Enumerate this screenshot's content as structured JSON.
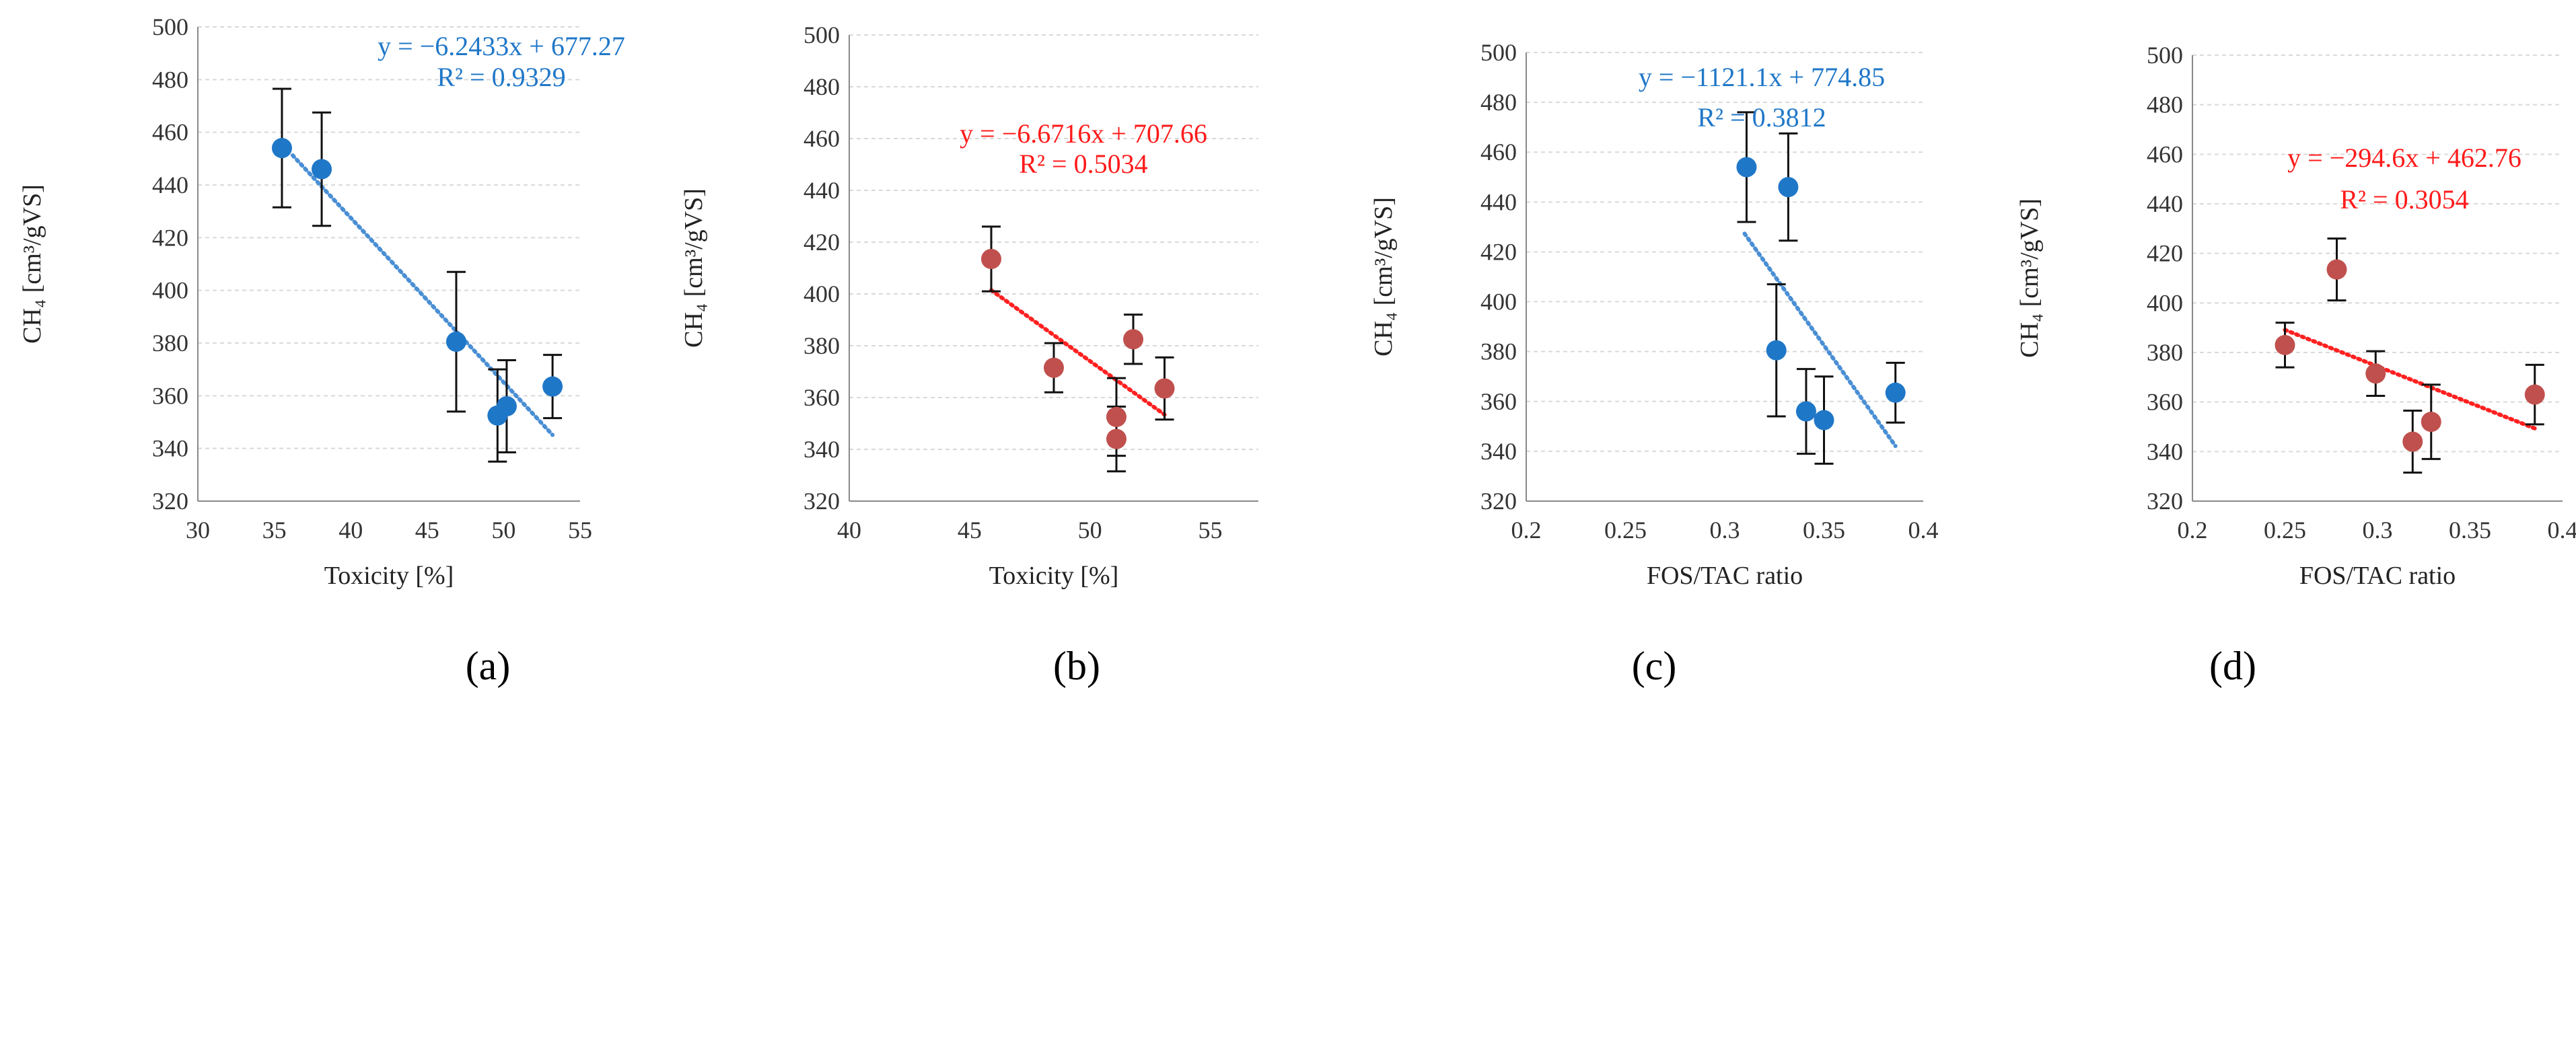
{
  "figure": {
    "panels": [
      "(a)",
      "(b)",
      "(c)",
      "(d)"
    ]
  },
  "chart_data": [
    {
      "type": "scatter",
      "panel_label": "(a)",
      "xlabel": "Toxicity [%]",
      "ylabel": "CH₄ [cm³/gVS]",
      "xlim": [
        30,
        55
      ],
      "ylim": [
        320,
        500
      ],
      "xticks": [
        "30",
        "35",
        "40",
        "45",
        "50",
        "55"
      ],
      "yticks": [
        "320",
        "340",
        "360",
        "380",
        "400",
        "420",
        "440",
        "460",
        "480",
        "500"
      ],
      "marker_color": "#1f77c8",
      "trendline_color": "#4a8fd4",
      "points": [
        {
          "x": 35.5,
          "y": 454,
          "err": 22.5
        },
        {
          "x": 38.1,
          "y": 446,
          "err": 21.5
        },
        {
          "x": 46.9,
          "y": 380.5,
          "err": 26.5
        },
        {
          "x": 49.6,
          "y": 352.5,
          "err": 17.5
        },
        {
          "x": 50.2,
          "y": 356,
          "err": 17.5
        },
        {
          "x": 53.2,
          "y": 363.5,
          "err": 12
        }
      ],
      "trendline": {
        "slope": -6.2433,
        "intercept": 677.27,
        "x_from": 36.2,
        "x_to": 53.2
      },
      "equation_text": "y = −6.2433x + 677.27",
      "r2_text": "R² = 0.9329"
    },
    {
      "type": "scatter",
      "panel_label": "(b)",
      "xlabel": "Toxicity [%]",
      "ylabel": "CH₄ [cm³/gVS]",
      "xlim": [
        40,
        57
      ],
      "ylim": [
        320,
        500
      ],
      "xticks": [
        "40",
        "45",
        "50",
        "55"
      ],
      "yticks": [
        "320",
        "340",
        "360",
        "380",
        "400",
        "420",
        "440",
        "460",
        "480",
        "500"
      ],
      "marker_color": "#c0504d",
      "trendline_color": "#ff2020",
      "points": [
        {
          "x": 45.9,
          "y": 413.5,
          "err": 12.5
        },
        {
          "x": 48.5,
          "y": 371.5,
          "err": 9.5
        },
        {
          "x": 51.1,
          "y": 352.5,
          "err": 15
        },
        {
          "x": 51.1,
          "y": 344,
          "err": 12.5
        },
        {
          "x": 51.8,
          "y": 382.5,
          "err": 9.5
        },
        {
          "x": 53.1,
          "y": 363.5,
          "err": 12
        }
      ],
      "trendline": {
        "slope": -6.6716,
        "intercept": 707.66,
        "x_from": 45.9,
        "x_to": 53.1
      },
      "equation_text": "y = −6.6716x + 707.66",
      "r2_text": "R² = 0.5034"
    },
    {
      "type": "scatter",
      "panel_label": "(c)",
      "xlabel": "FOS/TAC ratio",
      "ylabel": "CH₄ [cm³/gVS]",
      "xlim": [
        0.2,
        0.4
      ],
      "ylim": [
        320,
        500
      ],
      "xticks": [
        "0.2",
        "0.25",
        "0.3",
        "0.35",
        "0.4"
      ],
      "yticks": [
        "320",
        "340",
        "360",
        "380",
        "400",
        "420",
        "440",
        "460",
        "480",
        "500"
      ],
      "marker_color": "#1f77c8",
      "trendline_color": "#4a8fd4",
      "points": [
        {
          "x": 0.311,
          "y": 454,
          "err": 22
        },
        {
          "x": 0.332,
          "y": 446,
          "err": 21.5
        },
        {
          "x": 0.326,
          "y": 380.5,
          "err": 26.5
        },
        {
          "x": 0.341,
          "y": 356,
          "err": 17
        },
        {
          "x": 0.35,
          "y": 352.5,
          "err": 17.5
        },
        {
          "x": 0.386,
          "y": 363.5,
          "err": 12
        }
      ],
      "trendline": {
        "slope": -1121.1,
        "intercept": 774.85,
        "x_from": 0.31,
        "x_to": 0.386
      },
      "equation_text": "y = −1121.1x + 774.85",
      "r2_text": "R² = 0.3812"
    },
    {
      "type": "scatter",
      "panel_label": "(d)",
      "xlabel": "FOS/TAC ratio",
      "ylabel": "CH₄ [cm³/gVS]",
      "xlim": [
        0.2,
        0.4
      ],
      "ylim": [
        320,
        500
      ],
      "xticks": [
        "0.2",
        "0.25",
        "0.3",
        "0.35",
        "0.4"
      ],
      "yticks": [
        "320",
        "340",
        "360",
        "380",
        "400",
        "420",
        "440",
        "460",
        "480",
        "500"
      ],
      "marker_color": "#c0504d",
      "trendline_color": "#ff2020",
      "points": [
        {
          "x": 0.25,
          "y": 383,
          "err": 9
        },
        {
          "x": 0.278,
          "y": 413.5,
          "err": 12.5
        },
        {
          "x": 0.299,
          "y": 371.5,
          "err": 9
        },
        {
          "x": 0.319,
          "y": 344,
          "err": 12.5
        },
        {
          "x": 0.329,
          "y": 352,
          "err": 15
        },
        {
          "x": 0.385,
          "y": 363,
          "err": 12
        }
      ],
      "trendline": {
        "slope": -294.6,
        "intercept": 462.76,
        "x_from": 0.25,
        "x_to": 0.385
      },
      "equation_text": "y = −294.6x + 462.76",
      "r2_text": "R² = 0.3054"
    }
  ]
}
